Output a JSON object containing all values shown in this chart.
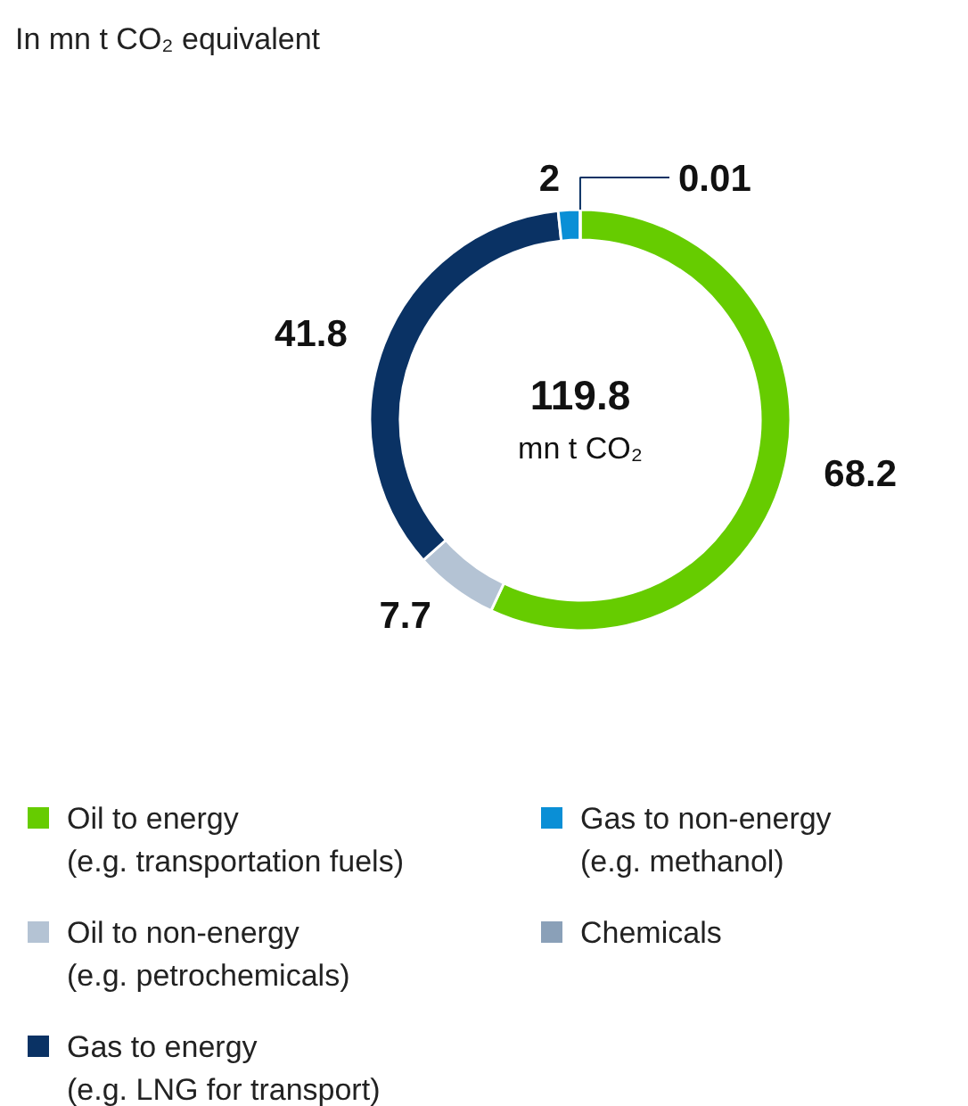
{
  "chart_data": {
    "type": "donut",
    "title": "In mn t CO₂ equivalent",
    "categories": [
      "Oil to energy\n(e.g. transportation fuels)",
      "Oil to non-energy\n(e.g. petrochemicals)",
      "Gas to energy\n(e.g. LNG for transport)",
      "Gas to non-energy\n(e.g. methanol)",
      "Chemicals"
    ],
    "values": [
      68.2,
      7.7,
      41.8,
      2,
      0.01
    ],
    "colors": [
      "#66cc00",
      "#b4c3d4",
      "#0a3264",
      "#0a8fd6",
      "#8aa0b8"
    ],
    "data_labels": true,
    "legend": "bottom",
    "annotations": [
      "119.8",
      "mn t CO₂"
    ]
  }
}
